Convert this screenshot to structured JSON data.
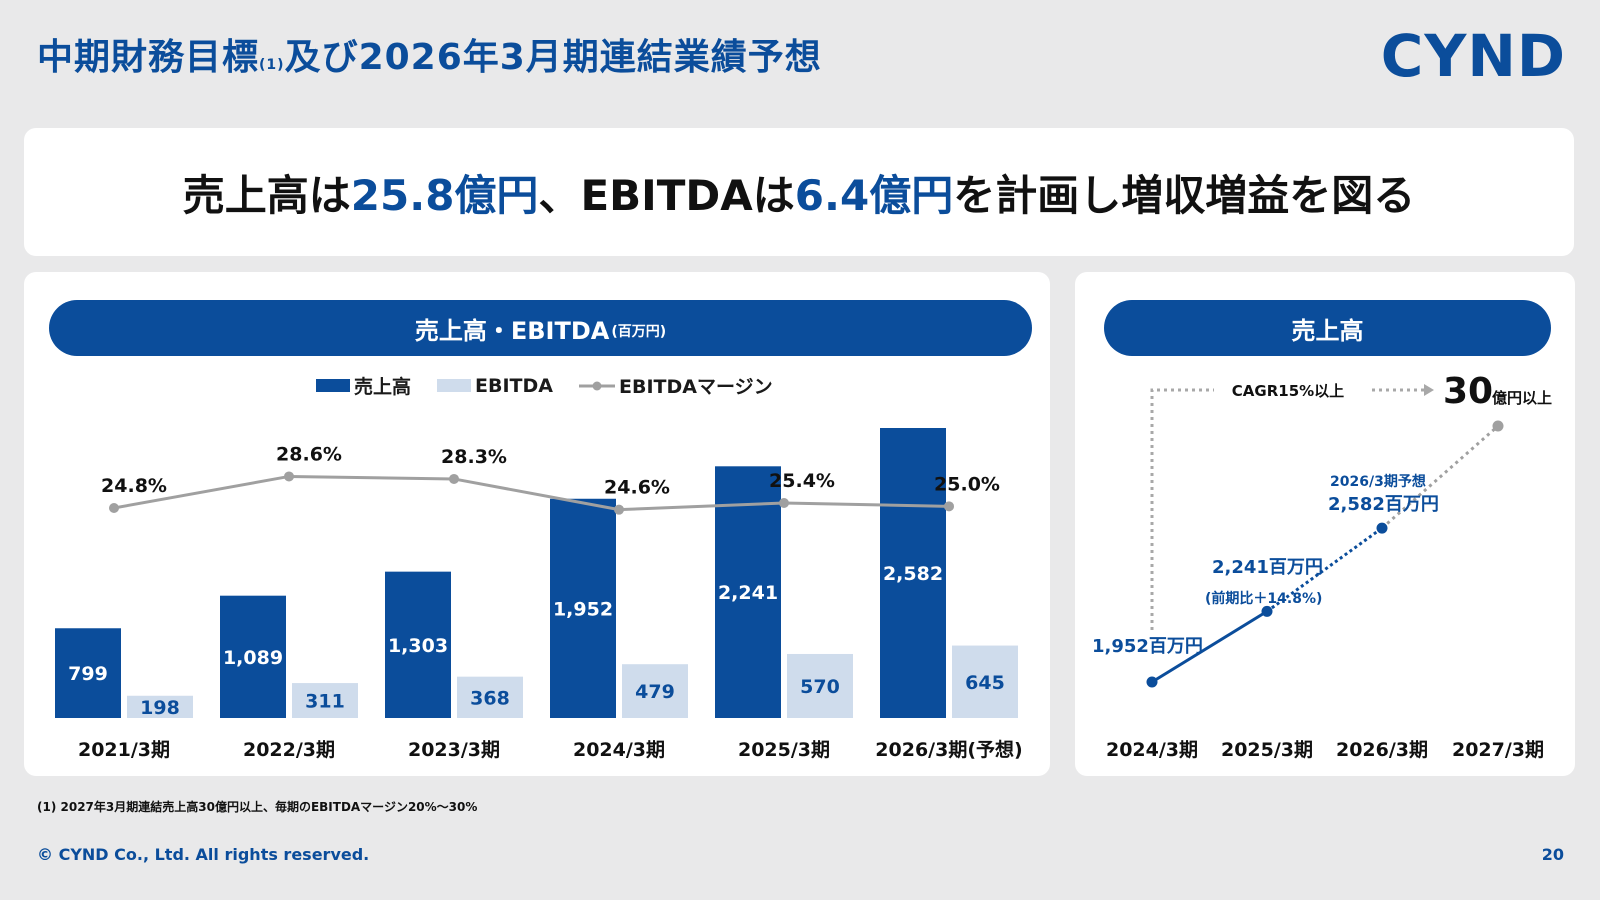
{
  "header": {
    "title_main": "中期財務目標",
    "title_sup": "(1)",
    "title_rest": "及び2026年3月期連結業績予想",
    "logo": "CYND"
  },
  "headline": {
    "part1": "売上高は",
    "hl1": "25.8億円",
    "part2": "、EBITDAは",
    "hl2": "6.4億円",
    "part3": "を計画し増収増益を図る"
  },
  "left_panel": {
    "title": "売上高・EBITDA",
    "title_unit": "(百万円)",
    "legend": {
      "sales": "売上高",
      "ebitda": "EBITDA",
      "margin": "EBITDAマージン"
    }
  },
  "right_panel": {
    "title": "売上高",
    "cagr_label": "CAGR15%以上",
    "target_value": "30",
    "target_unit": "億円以上",
    "forecast_label": "2026/3期予想",
    "annotations": [
      "1,952百万円",
      "2,241百万円",
      "(前期比＋14.8%)",
      "2,582百万円"
    ]
  },
  "chart_data": [
    {
      "type": "bar",
      "title": "売上高・EBITDA(百万円)",
      "categories": [
        "2021/3期",
        "2022/3期",
        "2023/3期",
        "2024/3期",
        "2025/3期",
        "2026/3期(予想)"
      ],
      "series": [
        {
          "name": "売上高",
          "values": [
            799,
            1089,
            1303,
            1952,
            2241,
            2582
          ],
          "labels": [
            "799",
            "1,089",
            "1,303",
            "1,952",
            "2,241",
            "2,582"
          ]
        },
        {
          "name": "EBITDA",
          "values": [
            198,
            311,
            368,
            479,
            570,
            645
          ],
          "labels": [
            "198",
            "311",
            "368",
            "479",
            "570",
            "645"
          ]
        },
        {
          "name": "EBITDAマージン",
          "kind": "line",
          "values": [
            24.8,
            28.6,
            28.3,
            24.6,
            25.4,
            25.0
          ],
          "labels": [
            "24.8%",
            "28.6%",
            "28.3%",
            "24.6%",
            "25.4%",
            "25.0%"
          ]
        }
      ],
      "colors": {
        "sales": "#0b4d9b",
        "ebitda": "#cfdcec",
        "margin": "#a0a0a0"
      },
      "ylim": [
        0,
        2600
      ]
    },
    {
      "type": "line",
      "title": "売上高",
      "categories": [
        "2024/3期",
        "2025/3期",
        "2026/3期",
        "2027/3期"
      ],
      "values": [
        1952,
        2241,
        2582,
        3000
      ],
      "unit": "百万円",
      "colors": {
        "actual": "#0b4d9b",
        "forecast": "#a0a0a0"
      }
    }
  ],
  "footer": {
    "footnote": "(1) 2027年3月期連結売上高30億円以上、毎期のEBITDAマージン20%～30%",
    "copyright": "© CYND Co., Ltd. All rights reserved.",
    "page": "20"
  }
}
